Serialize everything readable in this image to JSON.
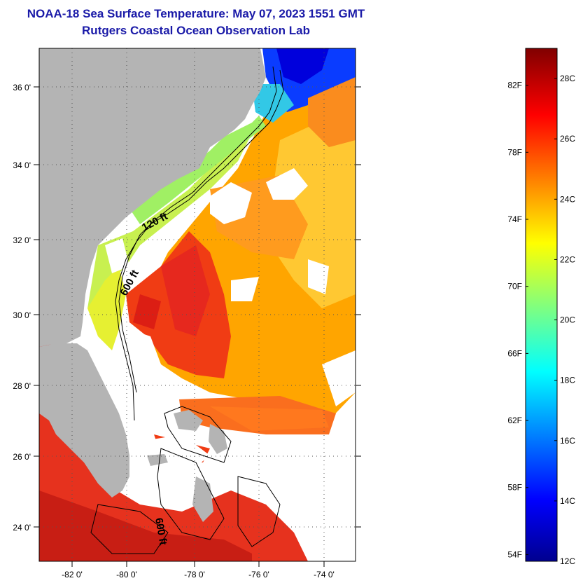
{
  "title": "NOAA-18 Sea Surface Temperature:  May 07, 2023 1551 GMT",
  "subtitle": "Rutgers Coastal Ocean Observation Lab",
  "map": {
    "lon_ticks": [
      "-82 0'",
      "-80 0'",
      "-78 0'",
      "-76 0'",
      "-74 0'"
    ],
    "lat_ticks": [
      "36 0'",
      "34 0'",
      "32 0'",
      "30 0'",
      "28 0'",
      "26 0'",
      "24 0'"
    ],
    "contour_labels": [
      "120 ft",
      "600 ft",
      "600 ft"
    ],
    "colors": {
      "land": "#b4b4b4",
      "cloud": "#ffffff"
    }
  },
  "colorbar": {
    "fahrenheit_labels": [
      "82F",
      "78F",
      "74F",
      "70F",
      "66F",
      "62F",
      "58F",
      "54F"
    ],
    "celsius_labels": [
      "28C",
      "26C",
      "24C",
      "22C",
      "20C",
      "18C",
      "16C",
      "14C",
      "12C"
    ],
    "range_c": [
      12,
      29
    ]
  }
}
